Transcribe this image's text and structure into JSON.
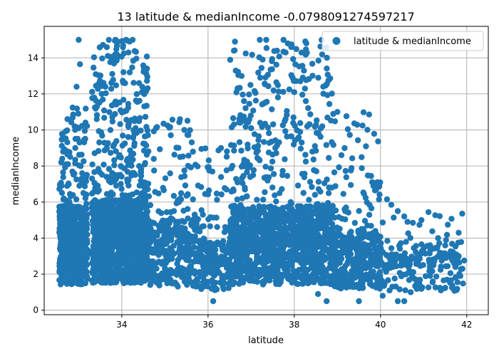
{
  "chart_data": {
    "type": "scatter",
    "title": "13 latitude & medianIncome -0.0798091274597217",
    "xlabel": "latitude",
    "ylabel": "medianIncome",
    "xlim": [
      32.2,
      42.5
    ],
    "ylim": [
      -0.25,
      15.75
    ],
    "x_ticks": [
      34,
      36,
      38,
      40,
      42
    ],
    "y_ticks": [
      0,
      2,
      4,
      6,
      8,
      10,
      12,
      14
    ],
    "grid": true,
    "legend": {
      "position": "top-right",
      "entries": [
        "latitude & medianIncome"
      ]
    },
    "series": [
      {
        "name": "latitude & medianIncome",
        "color": "#1f77b4",
        "marker": "circle",
        "regions": [
          {
            "lat_range": [
              32.55,
              33.2
            ],
            "income_mode": 3.6,
            "income_max": 11.3,
            "density": "high"
          },
          {
            "lat_range": [
              33.3,
              34.6
            ],
            "income_mode": 3.8,
            "income_max": 15.0,
            "density": "very high"
          },
          {
            "lat_range": [
              34.6,
              35.8
            ],
            "income_mode": 3.2,
            "income_max": 10.6,
            "density": "medium"
          },
          {
            "lat_range": [
              35.8,
              36.5
            ],
            "income_mode": 2.5,
            "income_max": 9.0,
            "density": "low"
          },
          {
            "lat_range": [
              36.5,
              38.9
            ],
            "income_mode": 3.6,
            "income_max": 15.0,
            "density": "very high"
          },
          {
            "lat_range": [
              38.9,
              40.0
            ],
            "income_mode": 2.8,
            "income_max": 11.0,
            "density": "medium"
          },
          {
            "lat_range": [
              40.0,
              41.95
            ],
            "income_mode": 2.4,
            "income_max": 6.2,
            "density": "low"
          }
        ],
        "highlight_points": [
          {
            "x": 33.0,
            "y": 15.0
          },
          {
            "x": 33.03,
            "y": 13.65
          },
          {
            "x": 32.95,
            "y": 12.4
          },
          {
            "x": 33.7,
            "y": 15.0
          },
          {
            "x": 33.85,
            "y": 15.0
          },
          {
            "x": 34.1,
            "y": 15.0
          },
          {
            "x": 34.25,
            "y": 15.0
          },
          {
            "x": 34.05,
            "y": 14.25
          },
          {
            "x": 34.4,
            "y": 12.6
          },
          {
            "x": 35.35,
            "y": 10.6
          },
          {
            "x": 35.45,
            "y": 10.0
          },
          {
            "x": 35.35,
            "y": 8.5
          },
          {
            "x": 35.45,
            "y": 7.75
          },
          {
            "x": 35.5,
            "y": 6.35
          },
          {
            "x": 35.65,
            "y": 6.15
          },
          {
            "x": 35.88,
            "y": 5.3
          },
          {
            "x": 35.7,
            "y": 4.1
          },
          {
            "x": 36.12,
            "y": 0.5
          },
          {
            "x": 36.3,
            "y": 9.0
          },
          {
            "x": 36.55,
            "y": 10.15
          },
          {
            "x": 36.6,
            "y": 14.4
          },
          {
            "x": 36.85,
            "y": 10.5
          },
          {
            "x": 37.0,
            "y": 10.1
          },
          {
            "x": 37.2,
            "y": 15.0
          },
          {
            "x": 37.35,
            "y": 15.0
          },
          {
            "x": 37.75,
            "y": 15.0
          },
          {
            "x": 37.85,
            "y": 14.8
          },
          {
            "x": 37.93,
            "y": 14.6
          },
          {
            "x": 37.8,
            "y": 14.3
          },
          {
            "x": 37.6,
            "y": 14.4
          },
          {
            "x": 38.0,
            "y": 12.1
          },
          {
            "x": 38.3,
            "y": 10.2
          },
          {
            "x": 38.65,
            "y": 10.2
          },
          {
            "x": 38.8,
            "y": 8.45
          },
          {
            "x": 39.0,
            "y": 11.0
          },
          {
            "x": 39.2,
            "y": 5.7
          },
          {
            "x": 39.6,
            "y": 4.5
          },
          {
            "x": 39.7,
            "y": 4.1
          },
          {
            "x": 40.15,
            "y": 6.15
          },
          {
            "x": 40.25,
            "y": 5.85
          },
          {
            "x": 40.4,
            "y": 5.5
          },
          {
            "x": 40.55,
            "y": 5.2
          },
          {
            "x": 40.75,
            "y": 4.85
          },
          {
            "x": 40.95,
            "y": 5.0
          },
          {
            "x": 41.15,
            "y": 3.6
          },
          {
            "x": 41.3,
            "y": 3.45
          },
          {
            "x": 41.5,
            "y": 3.1
          },
          {
            "x": 41.65,
            "y": 2.85
          },
          {
            "x": 41.8,
            "y": 3.75
          },
          {
            "x": 41.9,
            "y": 2.3
          },
          {
            "x": 41.85,
            "y": 1.9
          },
          {
            "x": 41.4,
            "y": 1.1
          },
          {
            "x": 40.4,
            "y": 0.5
          },
          {
            "x": 40.55,
            "y": 0.5
          },
          {
            "x": 40.05,
            "y": 0.8
          },
          {
            "x": 40.7,
            "y": 1.0
          },
          {
            "x": 39.5,
            "y": 0.5
          },
          {
            "x": 38.75,
            "y": 0.5
          },
          {
            "x": 38.55,
            "y": 0.9
          }
        ]
      }
    ]
  }
}
